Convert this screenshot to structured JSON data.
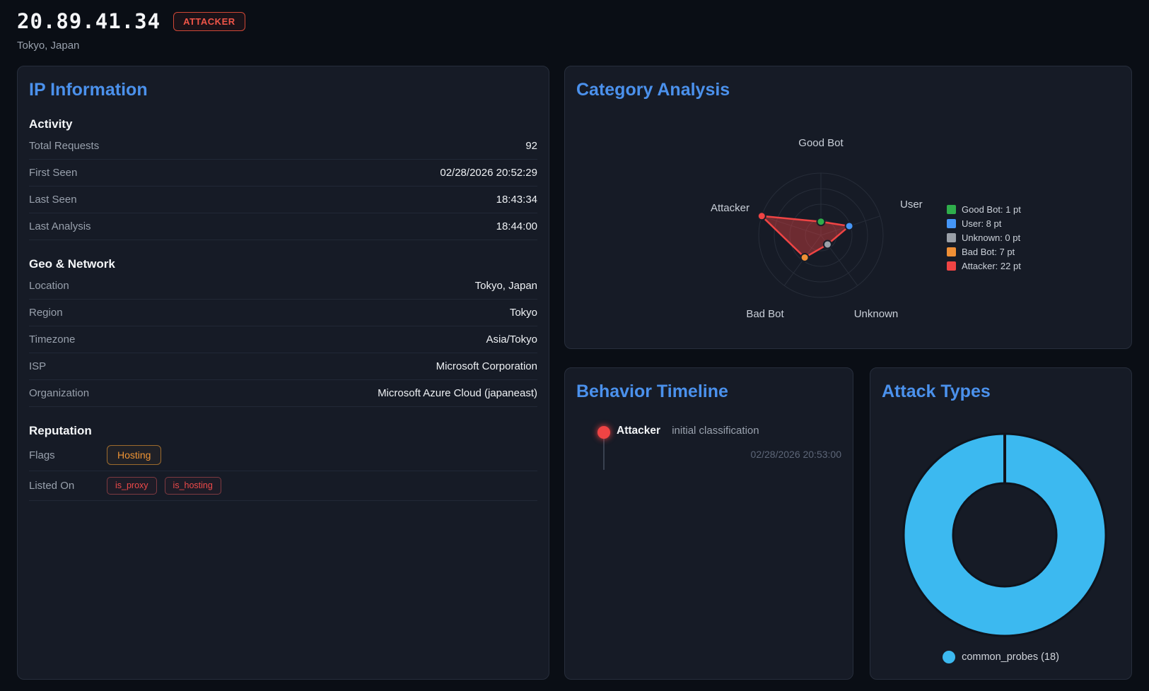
{
  "header": {
    "ip": "20.89.41.34",
    "badge": "ATTACKER",
    "location": "Tokyo, Japan"
  },
  "panels": {
    "ip_information": {
      "title": "IP Information",
      "sections": [
        {
          "heading": "Activity",
          "rows": [
            {
              "label": "Total Requests",
              "value": "92"
            },
            {
              "label": "First Seen",
              "value": "02/28/2026 20:52:29"
            },
            {
              "label": "Last Seen",
              "value": "18:43:34"
            },
            {
              "label": "Last Analysis",
              "value": "18:44:00"
            }
          ]
        },
        {
          "heading": "Geo & Network",
          "rows": [
            {
              "label": "Location",
              "value": "Tokyo, Japan"
            },
            {
              "label": "Region",
              "value": "Tokyo"
            },
            {
              "label": "Timezone",
              "value": "Asia/Tokyo"
            },
            {
              "label": "ISP",
              "value": "Microsoft Corporation"
            },
            {
              "label": "Organization",
              "value": "Microsoft Azure Cloud (japaneast)"
            }
          ]
        },
        {
          "heading": "Reputation",
          "rows": [
            {
              "label": "Flags",
              "badges": [
                {
                  "text": "Hosting",
                  "variant": "orange"
                }
              ]
            },
            {
              "label": "Listed On",
              "badges": [
                {
                  "text": "is_proxy",
                  "variant": "red"
                },
                {
                  "text": "is_hosting",
                  "variant": "red"
                }
              ]
            }
          ]
        }
      ]
    },
    "category_analysis": {
      "title": "Category Analysis"
    },
    "behavior_timeline": {
      "title": "Behavior Timeline",
      "events": [
        {
          "label": "Attacker",
          "description": "initial classification",
          "timestamp": "02/28/2026 20:53:00",
          "color": "#ef4444"
        }
      ]
    },
    "attack_types": {
      "title": "Attack Types"
    }
  },
  "chart_data": [
    {
      "type": "radar",
      "title": "Category Analysis",
      "axes": [
        "Good Bot",
        "User",
        "Unknown",
        "Bad Bot",
        "Attacker"
      ],
      "values": [
        1,
        8,
        0,
        7,
        22
      ],
      "unit": "pt",
      "point_colors": [
        "#2fae4b",
        "#4596f7",
        "#9aa0a8",
        "#ef8f35",
        "#ef4444"
      ],
      "series_color": "#ef4444",
      "fill_color": "rgba(239,68,68,0.40)",
      "grid": true,
      "grid_rings": 4,
      "legend_position": "right",
      "legend": [
        "Good Bot: 1 pt",
        "User: 8 pt",
        "Unknown: 0 pt",
        "Bad Bot: 7 pt",
        "Attacker: 22 pt"
      ]
    },
    {
      "type": "donut",
      "title": "Attack Types",
      "segments": [
        {
          "label": "common_probes",
          "value": 18,
          "color": "#3cb9f0"
        }
      ],
      "legend": [
        "common_probes (18)"
      ],
      "legend_position": "bottom"
    }
  ]
}
